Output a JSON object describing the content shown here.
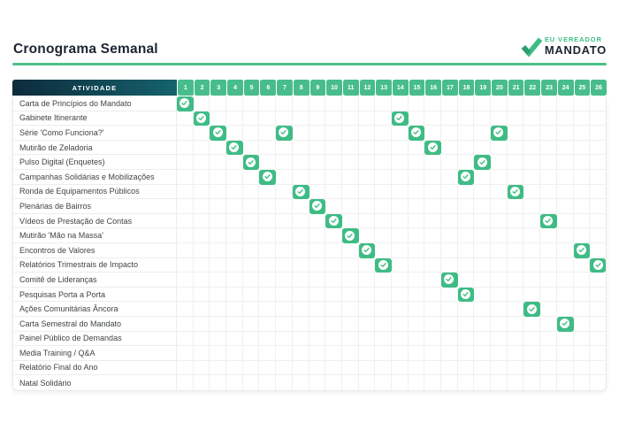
{
  "page": {
    "logo": {
      "line1": "EU VEREADOR",
      "line2": "MANDATO"
    }
  },
  "chart_data": {
    "type": "table",
    "title": "Cronograma Semanal",
    "header_label": "ATIVIDADE",
    "weeks": [
      1,
      2,
      3,
      4,
      5,
      6,
      7,
      8,
      9,
      10,
      11,
      12,
      13,
      14,
      15,
      16,
      17,
      18,
      19,
      20,
      21,
      22,
      23,
      24,
      25,
      26
    ],
    "activities": [
      {
        "name": "Carta de Princípios do Mandato",
        "checked_weeks": [
          1
        ]
      },
      {
        "name": "Gabinete Itinerante",
        "checked_weeks": [
          2,
          14
        ]
      },
      {
        "name": "Série 'Como Funciona?'",
        "checked_weeks": [
          3,
          7,
          15,
          20
        ]
      },
      {
        "name": "Mutirão de Zeladoria",
        "checked_weeks": [
          4,
          16
        ]
      },
      {
        "name": "Pulso Digital (Enquetes)",
        "checked_weeks": [
          5,
          19
        ]
      },
      {
        "name": "Campanhas Solidárias e Mobilizações",
        "checked_weeks": [
          6,
          18
        ]
      },
      {
        "name": "Ronda de Equipamentos Públicos",
        "checked_weeks": [
          8,
          21
        ]
      },
      {
        "name": "Plenárias de Bairros",
        "checked_weeks": [
          9
        ]
      },
      {
        "name": "Vídeos de Prestação de Contas",
        "checked_weeks": [
          10,
          23
        ]
      },
      {
        "name": "Mutirão 'Mão na Massa'",
        "checked_weeks": [
          11
        ]
      },
      {
        "name": "Encontros de Valores",
        "checked_weeks": [
          12,
          25
        ]
      },
      {
        "name": "Relatórios Trimestrais de Impacto",
        "checked_weeks": [
          13,
          26
        ]
      },
      {
        "name": "Comitê de Lideranças",
        "checked_weeks": [
          17
        ]
      },
      {
        "name": "Pesquisas Porta a Porta",
        "checked_weeks": [
          18
        ]
      },
      {
        "name": "Ações Comunitárias Âncora",
        "checked_weeks": [
          22
        ]
      },
      {
        "name": "Carta Semestral do Mandato",
        "checked_weeks": [
          24
        ]
      },
      {
        "name": "Painel Público de Demandas",
        "checked_weeks": []
      },
      {
        "name": "Media Training / Q&A",
        "checked_weeks": []
      },
      {
        "name": "Relatório Final do Ano",
        "checked_weeks": []
      },
      {
        "name": "Natal Solidário",
        "checked_weeks": []
      }
    ],
    "colors": {
      "check_green": "#3FBC85",
      "week_header_green": "#48BD8B",
      "header_gradient_left": "#0D2B3C",
      "header_gradient_right": "#15626C",
      "accent_line_green": "#4CC08A",
      "brand_green": "#3FBD86",
      "brand_dark": "#1B2530"
    }
  }
}
